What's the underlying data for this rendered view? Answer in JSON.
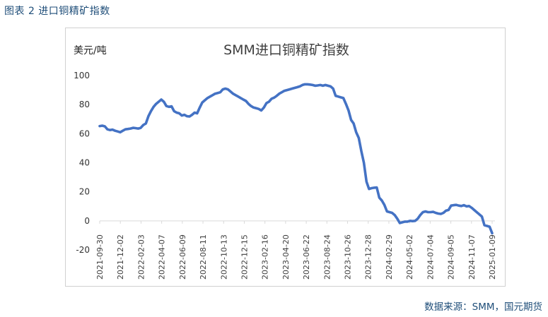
{
  "caption": "图表 2 进口铜精矿指数",
  "source": "数据来源：SMM，国元期货",
  "colors": {
    "line": "#4472c4",
    "caption": "#1f4e79",
    "axis": "#d9d9d9"
  },
  "chart_data": {
    "type": "line",
    "title": "SMM进口铜精矿指数",
    "ylabel": "美元/吨",
    "xlabel": "",
    "ylim": [
      -20,
      100
    ],
    "yticks": [
      -20,
      0,
      20,
      40,
      60,
      80,
      100
    ],
    "grid": false,
    "legend": "none",
    "x_tick_labels": [
      "2021-09-30",
      "2021-12-02",
      "2022-02-03",
      "2022-04-07",
      "2022-06-09",
      "2022-08-11",
      "2022-10-13",
      "2022-12-15",
      "2023-02-16",
      "2023-04-20",
      "2023-06-22",
      "2023-08-24",
      "2023-10-26",
      "2023-12-28",
      "2024-02-29",
      "2024-05-02",
      "2024-07-04",
      "2024-09-05",
      "2024-11-07",
      "2025-01-09"
    ],
    "series": [
      {
        "values": [
          65.2,
          65.5,
          65.0,
          63.0,
          62.5,
          62.8,
          62.0,
          61.5,
          61.0,
          62.0,
          63.0,
          63.2,
          63.5,
          64.0,
          63.8,
          63.5,
          64.0,
          66.0,
          67.0,
          72.0,
          75.5,
          78.5,
          80.5,
          82.0,
          83.5,
          82.0,
          79.0,
          78.5,
          78.8,
          75.5,
          74.5,
          74.0,
          72.5,
          73.0,
          72.0,
          71.8,
          73.0,
          74.5,
          74.0,
          78.0,
          81.5,
          83.0,
          84.5,
          85.5,
          86.5,
          87.5,
          88.0,
          88.5,
          90.5,
          91.0,
          90.5,
          89.0,
          87.5,
          86.5,
          85.5,
          84.5,
          83.5,
          82.5,
          80.5,
          79.0,
          78.0,
          77.5,
          77.0,
          76.0,
          78.0,
          81.0,
          82.0,
          84.0,
          84.8,
          86.0,
          87.5,
          88.5,
          89.5,
          90.0,
          90.5,
          91.0,
          91.5,
          92.0,
          92.5,
          93.5,
          94.0,
          94.0,
          93.8,
          93.5,
          93.0,
          93.2,
          93.5,
          93.0,
          93.5,
          93.0,
          92.5,
          91.0,
          86.0,
          85.5,
          85.0,
          84.5,
          80.5,
          76.0,
          69.5,
          67.0,
          61.0,
          57.0,
          48.0,
          40.0,
          27.0,
          22.0,
          22.5,
          22.8,
          23.0,
          16.0,
          14.0,
          11.0,
          6.5,
          6.0,
          5.5,
          4.0,
          1.5,
          -1.5,
          -1.0,
          -0.5,
          -0.5,
          0.0,
          -0.2,
          0.0,
          1.5,
          4.0,
          6.0,
          6.5,
          6.0,
          6.0,
          6.2,
          5.5,
          5.0,
          4.8,
          5.5,
          7.0,
          7.5,
          10.5,
          10.8,
          11.0,
          10.5,
          10.2,
          10.8,
          10.0,
          10.2,
          9.0,
          7.5,
          6.0,
          4.5,
          3.0,
          -3.0,
          -3.5,
          -4.0,
          -8.5
        ]
      }
    ]
  }
}
